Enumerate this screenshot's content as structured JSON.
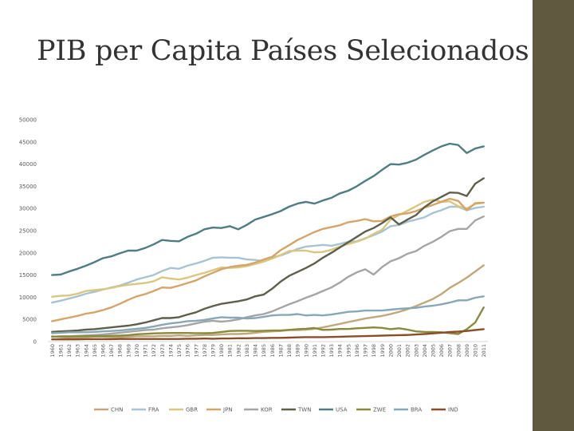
{
  "title": "PIB per Capita Países Selecionados",
  "colors": {
    "sidebar": "#60583f",
    "background": "#ffffff"
  },
  "chart_data": {
    "type": "line",
    "title": "PIB per Capita Países Selecionados",
    "xlabel": "",
    "ylabel": "",
    "ylim": [
      0,
      50000
    ],
    "y_ticks": [
      0,
      5000,
      10000,
      15000,
      20000,
      25000,
      30000,
      35000,
      40000,
      45000,
      50000
    ],
    "grid": false,
    "legend_position": "bottom",
    "x": [
      "1960",
      "1961",
      "1962",
      "1963",
      "1964",
      "1965",
      "1966",
      "1967",
      "1968",
      "1969",
      "1970",
      "1971",
      "1972",
      "1973",
      "1974",
      "1975",
      "1976",
      "1977",
      "1978",
      "1979",
      "1980",
      "1981",
      "1982",
      "1983",
      "1984",
      "1985",
      "1986",
      "1987",
      "1988",
      "1989",
      "1990",
      "1991",
      "1992",
      "1993",
      "1994",
      "1995",
      "1996",
      "1997",
      "1998",
      "1999",
      "2000",
      "2001",
      "2002",
      "2003",
      "2004",
      "2005",
      "2006",
      "2007",
      "2008",
      "2009",
      "2010",
      "2011"
    ],
    "series": [
      {
        "name": "CHN",
        "color": "#c1a77a",
        "values": [
          1200,
          1000,
          900,
          900,
          1000,
          1100,
          1100,
          1000,
          1000,
          1100,
          1200,
          1200,
          1200,
          1300,
          1300,
          1400,
          1300,
          1400,
          1500,
          1500,
          1600,
          1700,
          1700,
          1800,
          2000,
          2200,
          2300,
          2400,
          2600,
          2600,
          2700,
          2900,
          3200,
          3600,
          4000,
          4400,
          4800,
          5200,
          5500,
          5800,
          6200,
          6700,
          7300,
          8000,
          8800,
          9600,
          10700,
          12100,
          13200,
          14400,
          15800,
          17200
        ]
      },
      {
        "name": "FRA",
        "color": "#a8c3d2",
        "values": [
          8800,
          9200,
          9700,
          10200,
          10800,
          11200,
          11700,
          12200,
          12600,
          13300,
          14000,
          14500,
          15000,
          15900,
          16600,
          16400,
          17100,
          17600,
          18200,
          18900,
          19000,
          18900,
          18900,
          18500,
          18400,
          18100,
          19000,
          19400,
          20100,
          20900,
          21400,
          21600,
          21800,
          21600,
          22000,
          22500,
          22600,
          23300,
          24000,
          24800,
          26000,
          26300,
          27000,
          27500,
          28000,
          29000,
          29600,
          30400,
          30400,
          29600,
          30100,
          30400
        ]
      },
      {
        "name": "GBR",
        "color": "#d9c77d",
        "values": [
          10100,
          10300,
          10400,
          10800,
          11400,
          11600,
          11800,
          12100,
          12500,
          12800,
          13000,
          13200,
          13600,
          14500,
          14200,
          14000,
          14400,
          15000,
          15500,
          16100,
          16700,
          16600,
          16700,
          17000,
          17500,
          18000,
          18700,
          19500,
          20400,
          20500,
          20500,
          20100,
          20200,
          20700,
          21400,
          22000,
          22500,
          23200,
          24300,
          25200,
          27500,
          28500,
          29500,
          30500,
          31500,
          32000,
          31500,
          31600,
          30500,
          30000,
          31000,
          31300
        ]
      },
      {
        "name": "JPN",
        "color": "#d6a468",
        "values": [
          4600,
          5000,
          5400,
          5800,
          6300,
          6600,
          7100,
          7700,
          8500,
          9400,
          10200,
          10700,
          11400,
          12200,
          12100,
          12600,
          13200,
          13800,
          14700,
          15500,
          16300,
          16800,
          17100,
          17300,
          17800,
          18500,
          19100,
          20600,
          21700,
          22900,
          23800,
          24700,
          25400,
          25800,
          26200,
          26900,
          27200,
          27600,
          27100,
          27200,
          28200,
          28700,
          28900,
          29400,
          30200,
          30800,
          31500,
          32200,
          31700,
          29600,
          31200,
          31300
        ]
      },
      {
        "name": "KOR",
        "color": "#a5a5a5",
        "values": [
          1100,
          1200,
          1200,
          1300,
          1400,
          1500,
          1600,
          1800,
          2000,
          2200,
          2400,
          2600,
          2700,
          3000,
          3200,
          3400,
          3700,
          4100,
          4500,
          4700,
          4500,
          4700,
          5000,
          5500,
          5900,
          6200,
          6800,
          7600,
          8400,
          9100,
          9900,
          10600,
          11400,
          12200,
          13300,
          14600,
          15600,
          16300,
          15100,
          16800,
          18100,
          18800,
          19800,
          20400,
          21600,
          22500,
          23600,
          24900,
          25400,
          25400,
          27300,
          28200
        ]
      },
      {
        "name": "TWN",
        "color": "#5f5f4b",
        "values": [
          2200,
          2300,
          2400,
          2500,
          2700,
          2800,
          3000,
          3200,
          3400,
          3600,
          3900,
          4300,
          4800,
          5300,
          5300,
          5500,
          6100,
          6600,
          7400,
          8000,
          8500,
          8800,
          9100,
          9500,
          10200,
          10600,
          11900,
          13500,
          14800,
          15700,
          16600,
          17600,
          18900,
          20000,
          21200,
          22400,
          23600,
          24800,
          25600,
          26700,
          28000,
          26400,
          27500,
          28500,
          30300,
          31600,
          32600,
          33600,
          33500,
          32800,
          35600,
          36800
        ]
      },
      {
        "name": "USA",
        "color": "#4f7d84",
        "values": [
          15000,
          15100,
          15800,
          16400,
          17100,
          17900,
          18800,
          19200,
          19900,
          20500,
          20500,
          21100,
          21900,
          22900,
          22700,
          22600,
          23600,
          24300,
          25300,
          25700,
          25600,
          26000,
          25300,
          26300,
          27500,
          28100,
          28700,
          29400,
          30400,
          31100,
          31500,
          31100,
          31800,
          32400,
          33400,
          34000,
          35000,
          36200,
          37300,
          38700,
          40000,
          39900,
          40300,
          41000,
          42100,
          43100,
          44000,
          44600,
          44300,
          42500,
          43500,
          44000
        ]
      },
      {
        "name": "ZWE",
        "color": "#8a8a3c",
        "values": [
          1100,
          1150,
          1150,
          1200,
          1200,
          1250,
          1250,
          1300,
          1350,
          1450,
          1650,
          1750,
          1850,
          1900,
          1950,
          1950,
          1950,
          1900,
          1900,
          1950,
          2150,
          2400,
          2450,
          2450,
          2400,
          2450,
          2500,
          2500,
          2650,
          2800,
          2900,
          3050,
          2650,
          2700,
          2850,
          2850,
          3000,
          3100,
          3200,
          3100,
          2800,
          3000,
          2700,
          2300,
          2200,
          2150,
          2100,
          1900,
          1700,
          2800,
          4300,
          7700
        ]
      },
      {
        "name": "BRA",
        "color": "#86a8b8",
        "values": [
          1900,
          2000,
          2100,
          2100,
          2100,
          2200,
          2300,
          2400,
          2500,
          2700,
          2900,
          3100,
          3400,
          3800,
          4100,
          4300,
          4600,
          4700,
          4900,
          5200,
          5500,
          5400,
          5400,
          5200,
          5300,
          5600,
          5900,
          6000,
          6000,
          6200,
          5900,
          6000,
          5900,
          6100,
          6400,
          6700,
          6800,
          7000,
          7000,
          7000,
          7200,
          7400,
          7500,
          7600,
          7900,
          8100,
          8400,
          8800,
          9300,
          9300,
          9900,
          10200
        ]
      },
      {
        "name": "IND",
        "color": "#8a4f2a",
        "values": [
          500,
          500,
          500,
          500,
          550,
          550,
          550,
          550,
          600,
          600,
          600,
          600,
          600,
          600,
          600,
          600,
          650,
          650,
          700,
          650,
          700,
          700,
          750,
          750,
          800,
          800,
          850,
          850,
          900,
          950,
          1000,
          1000,
          1000,
          1050,
          1100,
          1150,
          1200,
          1250,
          1300,
          1350,
          1400,
          1450,
          1500,
          1600,
          1700,
          1850,
          2000,
          2150,
          2250,
          2400,
          2600,
          2800
        ]
      }
    ]
  }
}
